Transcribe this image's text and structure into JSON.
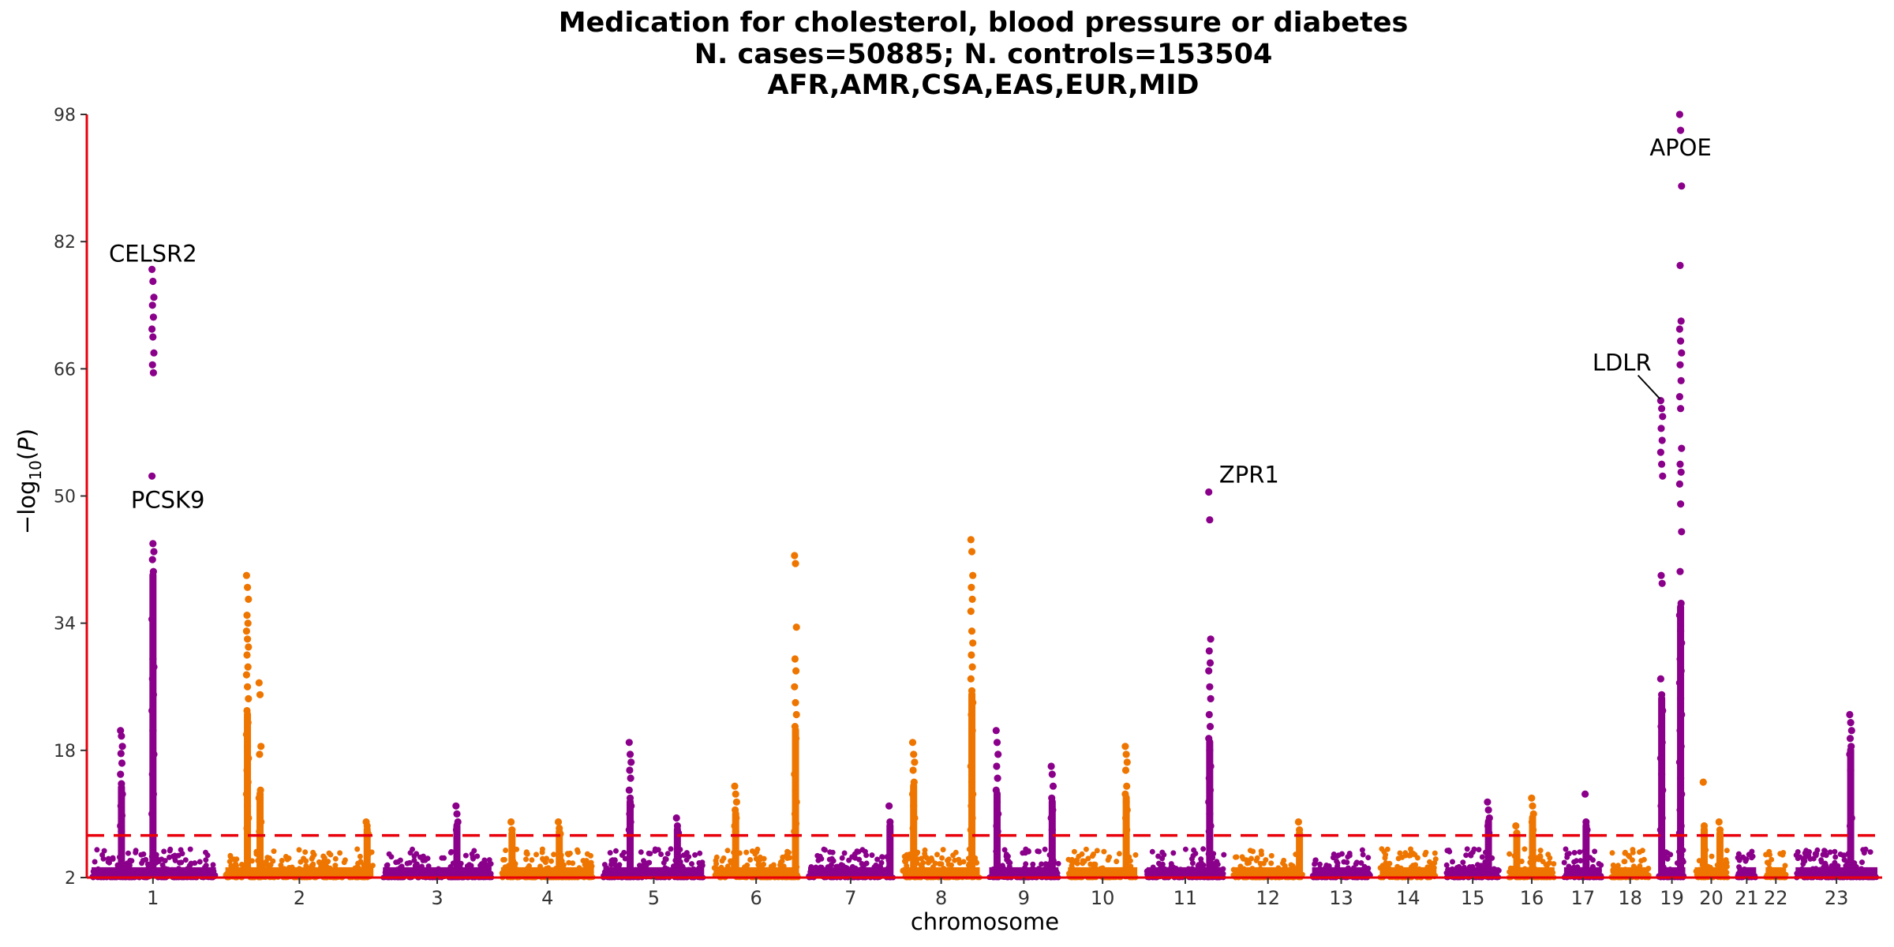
{
  "chart_data": {
    "type": "scatter",
    "subtype": "manhattan",
    "title_lines": [
      "Medication for cholesterol, blood pressure or diabetes",
      "N. cases=50885; N. controls=153504",
      "AFR,AMR,CSA,EAS,EUR,MID"
    ],
    "xlabel": "chromosome",
    "ylabel": "-log10(P)",
    "ylim": [
      2,
      98
    ],
    "yticks": [
      2,
      18,
      34,
      50,
      66,
      82,
      98
    ],
    "significance_threshold": 7.3,
    "colors": {
      "odd": "#8B008B",
      "even": "#EE7600",
      "axis": "#E8000B",
      "threshold": "#E8000B"
    },
    "chromosomes": [
      {
        "label": "1",
        "start": 0.0,
        "end": 8.5
      },
      {
        "label": "2",
        "start": 8.5,
        "end": 18.5
      },
      {
        "label": "3",
        "start": 18.5,
        "end": 26.0
      },
      {
        "label": "4",
        "start": 26.0,
        "end": 32.5
      },
      {
        "label": "5",
        "start": 32.5,
        "end": 39.5
      },
      {
        "label": "6",
        "start": 39.5,
        "end": 45.5
      },
      {
        "label": "7",
        "start": 45.5,
        "end": 51.5
      },
      {
        "label": "8",
        "start": 51.5,
        "end": 57.0
      },
      {
        "label": "9",
        "start": 57.0,
        "end": 62.0
      },
      {
        "label": "10",
        "start": 62.0,
        "end": 67.0
      },
      {
        "label": "11",
        "start": 67.0,
        "end": 72.5
      },
      {
        "label": "12",
        "start": 72.5,
        "end": 77.5
      },
      {
        "label": "13",
        "start": 77.5,
        "end": 81.8
      },
      {
        "label": "14",
        "start": 81.8,
        "end": 86.0
      },
      {
        "label": "15",
        "start": 86.0,
        "end": 90.0
      },
      {
        "label": "16",
        "start": 90.0,
        "end": 93.5
      },
      {
        "label": "17",
        "start": 93.5,
        "end": 96.5
      },
      {
        "label": "18",
        "start": 96.5,
        "end": 99.5
      },
      {
        "label": "19",
        "start": 99.5,
        "end": 101.8
      },
      {
        "label": "20",
        "start": 101.8,
        "end": 104.5
      },
      {
        "label": "21",
        "start": 104.5,
        "end": 106.3
      },
      {
        "label": "22",
        "start": 106.3,
        "end": 108.2
      },
      {
        "label": "23",
        "start": 108.2,
        "end": 114.0
      }
    ],
    "peaks": [
      {
        "chrom": "1",
        "pos": 2.2,
        "values": [
          20.5,
          19.8,
          18.5,
          17.6,
          16.4,
          15.0,
          13.8,
          12.5,
          11.0,
          9.8,
          8.5,
          7.8
        ]
      },
      {
        "chrom": "1",
        "pos": 4.2,
        "values": [
          78.5,
          77.0,
          75.0,
          74.0,
          72.5,
          71.0,
          70.0,
          68.0,
          66.5,
          65.5,
          52.5,
          44.0,
          43.0,
          42.0,
          40.5,
          34.5,
          29.5,
          28.5,
          27.0,
          25.0,
          23.0,
          20.5,
          17.5,
          15.0,
          12.5,
          10.0
        ]
      },
      {
        "chrom": "2",
        "pos": 10.2,
        "values": [
          40.0,
          38.5,
          37.0,
          35.0,
          34.0,
          33.0,
          32.0,
          31.0,
          30.0,
          28.5,
          27.5,
          26.0,
          24.5,
          23.0,
          21.5,
          20.0,
          18.5,
          17.0,
          15.5,
          14.0,
          12.5,
          11.0,
          9.5,
          8.2
        ]
      },
      {
        "chrom": "2",
        "pos": 11.0,
        "values": [
          26.5,
          25.0,
          18.5,
          17.5,
          13.0,
          12.0,
          10.5,
          9.0,
          7.8
        ]
      },
      {
        "chrom": "2",
        "pos": 17.8,
        "values": [
          9.0,
          8.5,
          7.5
        ]
      },
      {
        "chrom": "3",
        "pos": 23.5,
        "values": [
          11.0,
          10.0,
          9.0,
          8.0
        ]
      },
      {
        "chrom": "4",
        "pos": 27.0,
        "values": [
          9.0,
          8.0
        ]
      },
      {
        "chrom": "4",
        "pos": 30.0,
        "values": [
          9.0,
          8.2,
          7.5
        ]
      },
      {
        "chrom": "5",
        "pos": 34.5,
        "values": [
          19.0,
          17.5,
          16.5,
          15.5,
          14.5,
          13.0,
          12.0,
          11.0,
          10.0,
          9.0,
          8.0
        ]
      },
      {
        "chrom": "5",
        "pos": 37.5,
        "values": [
          9.5,
          8.5,
          7.6
        ]
      },
      {
        "chrom": "6",
        "pos": 41.2,
        "values": [
          13.5,
          12.5,
          11.5,
          10.5,
          9.5,
          8.5,
          7.8
        ]
      },
      {
        "chrom": "6",
        "pos": 45.0,
        "values": [
          42.5,
          41.5,
          33.5,
          29.5,
          28.0,
          26.0,
          24.0,
          22.5,
          21.0,
          19.5,
          15.0,
          13.0,
          11.5,
          10.0,
          8.8,
          7.8
        ]
      },
      {
        "chrom": "7",
        "pos": 51.0,
        "values": [
          11.0,
          9.0
        ]
      },
      {
        "chrom": "8",
        "pos": 52.5,
        "values": [
          19.0,
          17.5,
          16.5,
          15.5,
          14.0,
          12.5,
          11.0,
          9.5,
          8.2
        ]
      },
      {
        "chrom": "8",
        "pos": 56.2,
        "values": [
          44.5,
          43.0,
          40.0,
          38.5,
          37.0,
          35.5,
          33.0,
          31.5,
          30.0,
          28.5,
          27.0,
          25.5,
          24.0,
          22.5,
          20.5,
          16.0,
          14.0,
          12.5,
          11.0,
          9.5,
          8.0
        ]
      },
      {
        "chrom": "9",
        "pos": 57.8,
        "values": [
          20.5,
          19.0,
          17.5,
          16.0,
          14.5,
          13.0,
          11.5,
          10.0,
          8.5,
          7.8
        ]
      },
      {
        "chrom": "9",
        "pos": 61.3,
        "values": [
          16.0,
          15.0,
          13.5,
          12.0,
          10.5,
          9.5,
          8.0
        ]
      },
      {
        "chrom": "10",
        "pos": 66.0,
        "values": [
          18.5,
          17.5,
          16.5,
          15.5,
          13.5,
          12.5,
          11.5,
          10.5,
          9.5,
          8.0
        ]
      },
      {
        "chrom": "11",
        "pos": 71.3,
        "values": [
          50.5,
          47.0,
          32.0,
          30.5,
          29.0,
          28.0,
          26.0,
          24.5,
          22.5,
          21.0,
          19.5,
          18.0,
          16.0,
          14.5,
          13.0,
          11.5,
          10.0,
          8.5,
          7.8
        ]
      },
      {
        "chrom": "12",
        "pos": 77.0,
        "values": [
          9.0,
          8.0
        ]
      },
      {
        "chrom": "15",
        "pos": 89.0,
        "values": [
          11.5,
          10.5,
          9.5,
          8.5,
          7.6
        ]
      },
      {
        "chrom": "16",
        "pos": 90.8,
        "values": [
          8.5,
          7.6
        ]
      },
      {
        "chrom": "16",
        "pos": 91.8,
        "values": [
          12.0,
          11.0,
          10.0,
          9.0,
          8.0
        ]
      },
      {
        "chrom": "17",
        "pos": 95.2,
        "values": [
          12.5,
          9.0,
          8.0
        ]
      },
      {
        "chrom": "19",
        "pos": 100.0,
        "values": [
          62.0,
          61.0,
          60.0,
          58.5,
          57.0,
          55.5,
          54.0,
          52.5,
          40.0,
          39.0,
          27.0,
          25.0,
          23.0,
          21.0,
          19.0,
          17.0,
          15.0,
          13.0,
          11.0,
          9.5,
          8.0
        ]
      },
      {
        "chrom": "19",
        "pos": 101.2,
        "values": [
          98.0,
          96.0,
          89.0,
          79.0,
          72.0,
          71.0,
          69.5,
          68.0,
          66.5,
          64.5,
          62.5,
          61.0,
          56.0,
          54.0,
          53.0,
          51.5,
          49.0,
          45.5,
          40.5,
          36.5,
          35.0,
          33.0,
          31.5,
          29.5,
          28.0,
          26.5,
          24.5,
          22.5,
          20.5,
          18.5,
          16.5,
          14.5,
          12.5,
          10.5,
          8.5,
          7.6
        ]
      },
      {
        "chrom": "20",
        "pos": 102.7,
        "values": [
          14.0,
          8.5
        ]
      },
      {
        "chrom": "20",
        "pos": 103.7,
        "values": [
          9.0,
          8.0
        ]
      },
      {
        "chrom": "23",
        "pos": 112.0,
        "values": [
          22.5,
          21.5,
          20.5,
          19.5,
          18.5,
          17.5,
          15.5,
          9.5,
          8.5
        ]
      }
    ],
    "annotations": [
      {
        "text": "CELSR2",
        "pos": 4.2,
        "value": 78.5,
        "anchor": "above"
      },
      {
        "text": "PCSK9",
        "pos": 2.2,
        "value": 49.5,
        "anchor": "right"
      },
      {
        "text": "ZPR1",
        "pos": 71.3,
        "value": 50.5,
        "anchor": "above-right"
      },
      {
        "text": "LDLR",
        "pos": 100.0,
        "value": 62.0,
        "anchor": "leader-left"
      },
      {
        "text": "APOE",
        "pos": 101.2,
        "value": 96.0,
        "anchor": "below"
      }
    ]
  }
}
